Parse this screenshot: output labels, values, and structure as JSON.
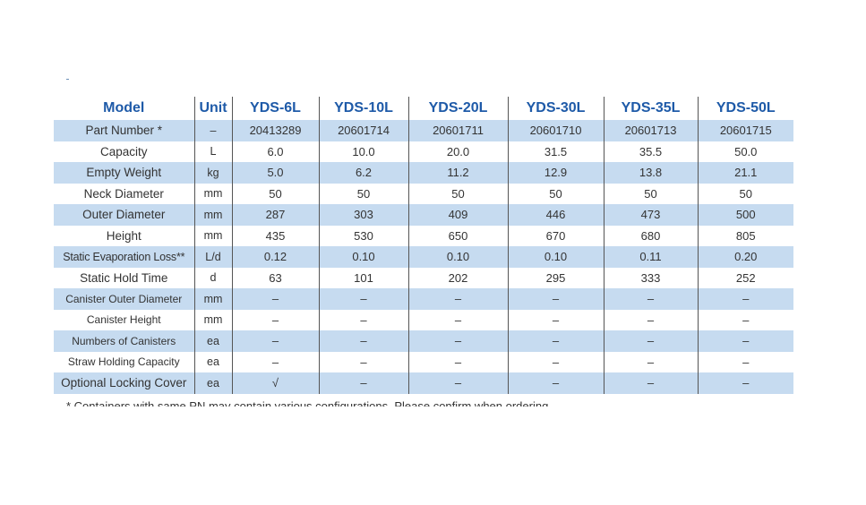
{
  "table": {
    "header": {
      "model_label": "Model",
      "unit_label": "Unit",
      "models": [
        "YDS-6L",
        "YDS-10L",
        "YDS-20L",
        "YDS-30L",
        "YDS-35L",
        "YDS-50L"
      ]
    },
    "rows": [
      {
        "name": "Part Number *",
        "unit": "–",
        "values": [
          "20413289",
          "20601714",
          "20601711",
          "20601710",
          "20601713",
          "20601715"
        ]
      },
      {
        "name": "Capacity",
        "unit": "L",
        "values": [
          "6.0",
          "10.0",
          "20.0",
          "31.5",
          "35.5",
          "50.0"
        ]
      },
      {
        "name": "Empty Weight",
        "unit": "kg",
        "values": [
          "5.0",
          "6.2",
          "11.2",
          "12.9",
          "13.8",
          "21.1"
        ]
      },
      {
        "name": "Neck Diameter",
        "unit": "mm",
        "values": [
          "50",
          "50",
          "50",
          "50",
          "50",
          "50"
        ]
      },
      {
        "name": "Outer Diameter",
        "unit": "mm",
        "values": [
          "287",
          "303",
          "409",
          "446",
          "473",
          "500"
        ]
      },
      {
        "name": "Height",
        "unit": "mm",
        "values": [
          "435",
          "530",
          "650",
          "670",
          "680",
          "805"
        ]
      },
      {
        "name": "Static Evaporation Loss**",
        "unit": "L/d",
        "values": [
          "0.12",
          "0.10",
          "0.10",
          "0.10",
          "0.11",
          "0.20"
        ]
      },
      {
        "name": "Static Hold Time",
        "unit": "d",
        "values": [
          "63",
          "101",
          "202",
          "295",
          "333",
          "252"
        ]
      },
      {
        "name": "Canister Outer Diameter",
        "unit": "mm",
        "values": [
          "–",
          "–",
          "–",
          "–",
          "–",
          "–"
        ]
      },
      {
        "name": "Canister Height",
        "unit": "mm",
        "values": [
          "–",
          "–",
          "–",
          "–",
          "–",
          "–"
        ]
      },
      {
        "name": "Numbers of Canisters",
        "unit": "ea",
        "values": [
          "–",
          "–",
          "–",
          "–",
          "–",
          "–"
        ]
      },
      {
        "name": "Straw Holding Capacity",
        "unit": "ea",
        "values": [
          "–",
          "–",
          "–",
          "–",
          "–",
          "–"
        ]
      },
      {
        "name": "Optional Locking Cover",
        "unit": "ea",
        "values": [
          "√",
          "–",
          "–",
          "–",
          "–",
          "–"
        ]
      }
    ]
  },
  "footnote": "* Containers with same PN may contain various configurations. Please confirm when ordering.",
  "colors": {
    "header_text": "#1e5aa8",
    "row_shade": "#c6dbf0",
    "body_text": "#333333"
  }
}
